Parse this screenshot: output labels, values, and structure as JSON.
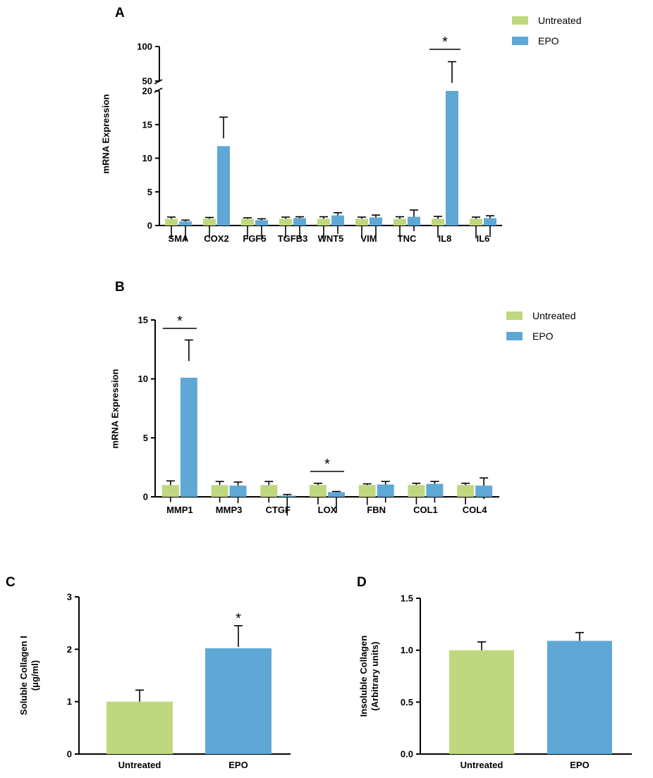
{
  "colors": {
    "untreated": "#bfd87f",
    "epo": "#5fa8d6"
  },
  "chart_data": [
    {
      "id": "A",
      "type": "bar",
      "panel_label": "A",
      "ylabel": "mRNA Expression",
      "categories": [
        "SMA",
        "COX2",
        "FGF5",
        "TGFB3",
        "WNT5",
        "VIM",
        "TNC",
        "IL8",
        "IL6"
      ],
      "series": [
        {
          "name": "Untreated",
          "values": [
            1.0,
            1.0,
            1.0,
            1.0,
            1.0,
            1.0,
            1.0,
            1.0,
            1.0
          ],
          "errors": [
            0.25,
            0.2,
            0.15,
            0.25,
            0.3,
            0.25,
            0.3,
            0.35,
            0.25
          ]
        },
        {
          "name": "EPO",
          "values": [
            0.6,
            11.8,
            0.8,
            1.1,
            1.5,
            1.2,
            1.3,
            50,
            1.1
          ],
          "errors": [
            0.2,
            4.3,
            0.2,
            0.2,
            0.4,
            0.35,
            1.0,
            28,
            0.35
          ]
        }
      ],
      "ylim": [
        0,
        100
      ],
      "axis_break": [
        20,
        50
      ],
      "yticks_lower": [
        "0",
        "5",
        "10",
        "15",
        "20"
      ],
      "yticks_upper": [
        "50",
        "100"
      ],
      "significance": [
        {
          "category": "IL8",
          "label": "*"
        }
      ],
      "legend": [
        "Untreated",
        "EPO"
      ]
    },
    {
      "id": "B",
      "type": "bar",
      "panel_label": "B",
      "ylabel": "mRNA Expression",
      "categories": [
        "MMP1",
        "MMP3",
        "CTGF",
        "LOX",
        "FBN",
        "COL1",
        "COL4"
      ],
      "series": [
        {
          "name": "Untreated",
          "values": [
            1.0,
            1.0,
            1.0,
            1.0,
            1.0,
            1.0,
            1.0
          ],
          "errors": [
            0.35,
            0.3,
            0.3,
            0.15,
            0.1,
            0.15,
            0.15
          ]
        },
        {
          "name": "EPO",
          "values": [
            10.1,
            0.95,
            0.1,
            0.4,
            1.05,
            1.1,
            0.95
          ],
          "errors": [
            3.2,
            0.3,
            0.1,
            0.05,
            0.25,
            0.2,
            0.65
          ]
        }
      ],
      "ylim": [
        0,
        15
      ],
      "yticks": [
        "0",
        "5",
        "10",
        "15"
      ],
      "significance": [
        {
          "category": "MMP1",
          "label": "*"
        },
        {
          "category": "LOX",
          "label": "*"
        }
      ],
      "legend": [
        "Untreated",
        "EPO"
      ]
    },
    {
      "id": "C",
      "type": "bar",
      "panel_label": "C",
      "ylabel": "Soluble Collagen I",
      "ylabel2": "(μg/ml)",
      "categories": [
        "Untreated",
        "EPO"
      ],
      "values": [
        1.0,
        2.02
      ],
      "errors": [
        0.22,
        0.43
      ],
      "ylim": [
        0,
        3
      ],
      "yticks": [
        "0",
        "1",
        "2",
        "3"
      ],
      "significance": [
        {
          "category": "EPO",
          "label": "*"
        }
      ]
    },
    {
      "id": "D",
      "type": "bar",
      "panel_label": "D",
      "ylabel": "Insoluble Collagen",
      "ylabel2": "(Arbitrary units)",
      "categories": [
        "Untreated",
        "EPO"
      ],
      "values": [
        1.0,
        1.09
      ],
      "errors": [
        0.08,
        0.08
      ],
      "ylim": [
        0,
        1.5
      ],
      "yticks": [
        "0.0",
        "0.5",
        "1.0",
        "1.5"
      ],
      "significance": []
    }
  ]
}
